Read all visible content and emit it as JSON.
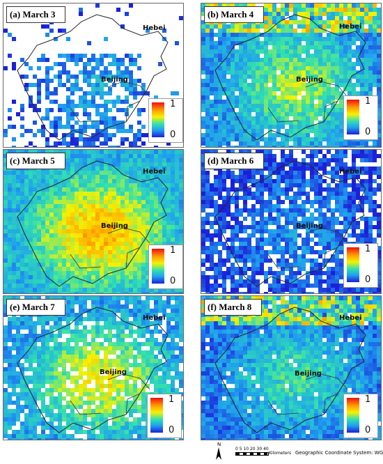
{
  "panels": [
    {
      "label": "(a)  March 3",
      "hebei": "Hebei",
      "beijing": "Beijing",
      "intensity": 0.18,
      "coverage": 0.45
    },
    {
      "label": "(b) March 4",
      "hebei": "Hebei",
      "beijing": "Beijing",
      "intensity": 0.42,
      "coverage": 0.95
    },
    {
      "label": "(c) March 5",
      "hebei": "Hebei",
      "beijing": "Beijing",
      "intensity": 0.6,
      "coverage": 1.0
    },
    {
      "label": "(d) March 6",
      "hebei": "Hebei",
      "beijing": "Beijing",
      "intensity": 0.14,
      "coverage": 0.8
    },
    {
      "label": "(e) March 7",
      "hebei": "Hebei",
      "beijing": "Beijing",
      "intensity": 0.5,
      "coverage": 0.85
    },
    {
      "label": "(f) March 8",
      "hebei": "Hebei",
      "beijing": "Beijing",
      "intensity": 0.32,
      "coverage": 0.97
    }
  ],
  "legend": {
    "max": "1",
    "min": "0"
  },
  "colormap": [
    "#1c20d8",
    "#1f9ef0",
    "#30e0b0",
    "#f6f200",
    "#ff9a00",
    "#ee1010"
  ],
  "footer": {
    "north": "N",
    "scale_ticks": "0 5 10   20    30    40",
    "scale_unit": "Kilometers",
    "coordinate_system": "Geographic Coordinate System: WGS 1984"
  }
}
